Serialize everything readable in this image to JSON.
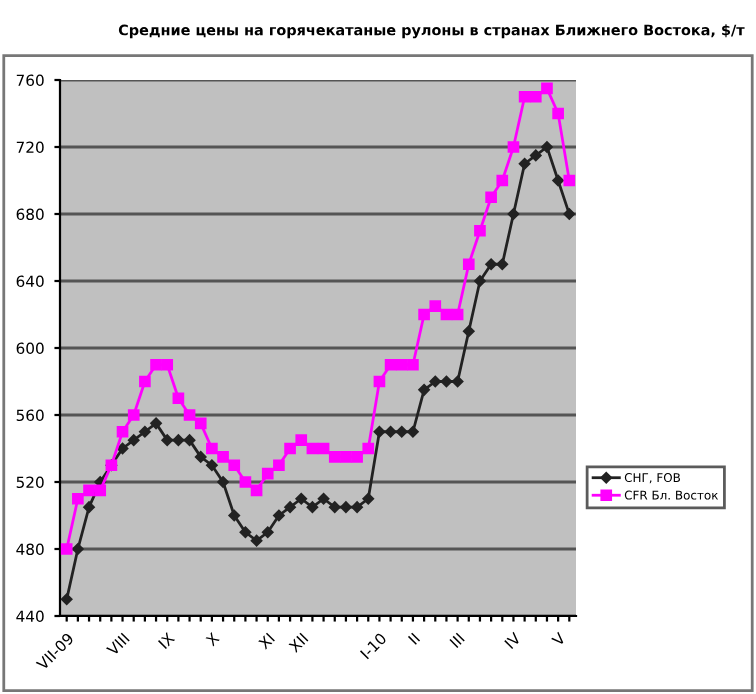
{
  "chart_data": {
    "type": "line",
    "title": "Средние цены на горячекатаные рулоны в странах Ближнего Востока, $/т",
    "categories": [
      "VII-09",
      null,
      null,
      null,
      null,
      "VIII",
      null,
      null,
      null,
      "IX",
      null,
      null,
      null,
      "X",
      null,
      null,
      null,
      null,
      "XI",
      null,
      null,
      "XII",
      null,
      null,
      null,
      null,
      null,
      null,
      "I-10",
      null,
      null,
      "II",
      null,
      null,
      null,
      "III",
      null,
      null,
      null,
      null,
      "IV",
      null,
      null,
      null,
      "V",
      null
    ],
    "series": [
      {
        "name": "СНГ, FOB",
        "color": "#222222",
        "marker": "diamond",
        "values": [
          450,
          480,
          505,
          520,
          530,
          540,
          545,
          550,
          555,
          545,
          545,
          545,
          535,
          530,
          520,
          500,
          490,
          485,
          490,
          500,
          505,
          510,
          505,
          510,
          505,
          505,
          505,
          510,
          550,
          550,
          550,
          550,
          575,
          580,
          580,
          580,
          610,
          640,
          650,
          650,
          680,
          710,
          715,
          720,
          700,
          680
        ]
      },
      {
        "name": "CFR Бл. Восток",
        "color": "#ff00ff",
        "marker": "square",
        "values": [
          480,
          510,
          515,
          515,
          530,
          550,
          560,
          580,
          590,
          590,
          570,
          560,
          555,
          540,
          535,
          530,
          520,
          515,
          525,
          530,
          540,
          545,
          540,
          540,
          535,
          535,
          535,
          540,
          580,
          590,
          590,
          590,
          620,
          625,
          620,
          620,
          650,
          670,
          690,
          700,
          720,
          750,
          750,
          755,
          740,
          700
        ]
      }
    ],
    "ylim": [
      440,
      760
    ],
    "yticks": [
      440,
      480,
      520,
      560,
      600,
      640,
      680,
      720,
      760
    ],
    "grid": "y",
    "legend": "right"
  }
}
